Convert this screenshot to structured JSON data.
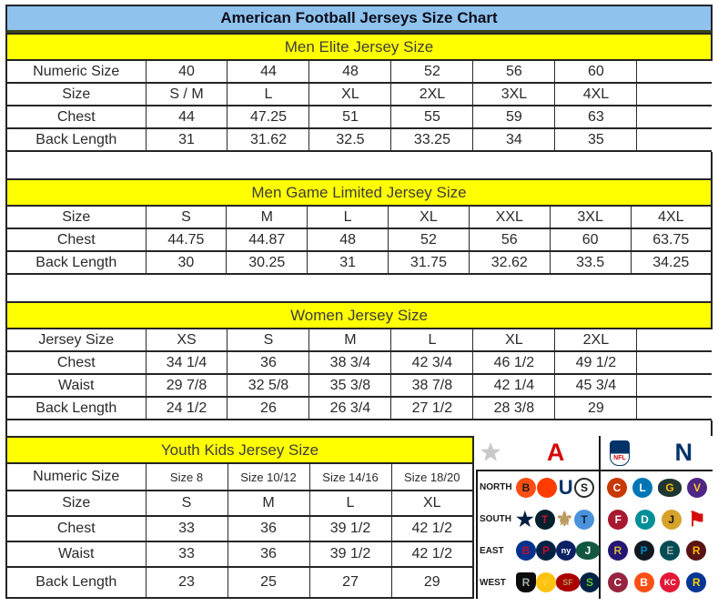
{
  "title": "American Football Jerseys Size Chart",
  "sections": [
    {
      "header": "Men Elite Jersey Size",
      "rows": [
        {
          "label": "Numeric Size",
          "values": [
            "40",
            "44",
            "48",
            "52",
            "56",
            "60",
            ""
          ]
        },
        {
          "label": "Size",
          "values": [
            "S / M",
            "L",
            "XL",
            "2XL",
            "3XL",
            "4XL",
            ""
          ]
        },
        {
          "label": "Chest",
          "values": [
            "44",
            "47.25",
            "51",
            "55",
            "59",
            "63",
            ""
          ]
        },
        {
          "label": "Back Length",
          "values": [
            "31",
            "31.62",
            "32.5",
            "33.25",
            "34",
            "35",
            ""
          ]
        }
      ]
    },
    {
      "header": "Men Game Limited Jersey Size",
      "rows": [
        {
          "label": "Size",
          "values": [
            "S",
            "M",
            "L",
            "XL",
            "XXL",
            "3XL",
            "4XL"
          ]
        },
        {
          "label": "Chest",
          "values": [
            "44.75",
            "44.87",
            "48",
            "52",
            "56",
            "60",
            "63.75"
          ]
        },
        {
          "label": "Back Length",
          "values": [
            "30",
            "30.25",
            "31",
            "31.75",
            "32.62",
            "33.5",
            "34.25"
          ]
        }
      ]
    },
    {
      "header": "Women Jersey Size",
      "rows": [
        {
          "label": "Jersey Size",
          "values": [
            "XS",
            "S",
            "M",
            "L",
            "XL",
            "2XL",
            ""
          ]
        },
        {
          "label": "Chest",
          "values": [
            "34 1/4",
            "36",
            "38 3/4",
            "42 3/4",
            "46 1/2",
            "49 1/2",
            ""
          ]
        },
        {
          "label": "Waist",
          "values": [
            "29 7/8",
            "32 5/8",
            "35 3/8",
            "38 7/8",
            "42 1/4",
            "45 3/4",
            ""
          ]
        },
        {
          "label": "Back Length",
          "values": [
            "24 1/2",
            "26",
            "26 3/4",
            "27 1/2",
            "28 3/8",
            "29",
            ""
          ]
        }
      ]
    },
    {
      "header": "Youth Kids Jersey Size",
      "rows": [
        {
          "label": "Numeric Size",
          "values": [
            "Size 8",
            "Size 10/12",
            "Size 14/16",
            "Size 18/20"
          ]
        },
        {
          "label": "Size",
          "values": [
            "S",
            "M",
            "L",
            "XL"
          ]
        },
        {
          "label": "Chest",
          "values": [
            "33",
            "36",
            "39 1/2",
            "42 1/2"
          ]
        },
        {
          "label": "Waist",
          "values": [
            "33",
            "36",
            "39 1/2",
            "42 1/2"
          ]
        },
        {
          "label": "Back Length",
          "values": [
            "23",
            "25",
            "27",
            "29"
          ]
        }
      ]
    }
  ],
  "logo_panel": {
    "header": {
      "starburst": {
        "name": "nfl-starburst",
        "glyph": "★",
        "color": "#c9c9c9"
      },
      "afc": {
        "name": "afc-logo",
        "glyph": "A",
        "color": "#d50a0a"
      },
      "shield": {
        "name": "nfl-shield",
        "glyph": "NFL",
        "bg": "#013369"
      },
      "nfc": {
        "name": "nfc-logo",
        "glyph": "N",
        "color": "#013369"
      }
    },
    "divisions": [
      {
        "label": "NORTH",
        "afc": [
          {
            "team": "bengals",
            "glyph": "B",
            "bg": "#fb4f14",
            "fg": "#1a1a1a"
          },
          {
            "team": "browns",
            "glyph": "",
            "bg": "#ff3c00"
          },
          {
            "team": "colts",
            "glyph": "U",
            "fg": "#013369",
            "shape": "plain"
          },
          {
            "team": "steelers",
            "glyph": "S",
            "bg": "#ffffff",
            "fg": "#101820",
            "border": "#2a2a2a"
          }
        ],
        "nfc": [
          {
            "team": "bears",
            "glyph": "C",
            "bg": "#c83803"
          },
          {
            "team": "lions",
            "glyph": "L",
            "bg": "#0076b6"
          },
          {
            "team": "packers",
            "glyph": "G",
            "bg": "#203731",
            "fg": "#ffb612",
            "shape": "oval"
          },
          {
            "team": "vikings",
            "glyph": "V",
            "bg": "#4f2683",
            "fg": "#ffc62f"
          }
        ]
      },
      {
        "label": "SOUTH",
        "afc": [
          {
            "team": "cowboys",
            "glyph": "★",
            "fg": "#041e42",
            "shape": "plain"
          },
          {
            "team": "texans",
            "glyph": "T",
            "bg": "#03202f",
            "fg": "#c41230"
          },
          {
            "team": "saints",
            "glyph": "⚜",
            "fg": "#b9975b",
            "shape": "plain"
          },
          {
            "team": "titans",
            "glyph": "T",
            "bg": "#4b92db",
            "fg": "#0c2340"
          }
        ],
        "nfc": [
          {
            "team": "falcons",
            "glyph": "F",
            "bg": "#a71930"
          },
          {
            "team": "dolphins",
            "glyph": "D",
            "bg": "#008e97"
          },
          {
            "team": "jaguars",
            "glyph": "J",
            "bg": "#d7a22a",
            "fg": "#101820"
          },
          {
            "team": "buccaneers",
            "glyph": "⚑",
            "fg": "#d50a0a",
            "shape": "plain"
          }
        ]
      },
      {
        "label": "EAST",
        "afc": [
          {
            "team": "bills",
            "glyph": "B",
            "bg": "#00338d",
            "fg": "#c60c30"
          },
          {
            "team": "patriots",
            "glyph": "P",
            "bg": "#002244",
            "fg": "#c60c30"
          },
          {
            "team": "giants",
            "glyph": "ny",
            "bg": "#0b2265"
          },
          {
            "team": "jets",
            "glyph": "J",
            "bg": "#125740",
            "shape": "oval"
          }
        ],
        "nfc": [
          {
            "team": "ravens",
            "glyph": "R",
            "bg": "#241773",
            "fg": "#d0b240"
          },
          {
            "team": "panthers",
            "glyph": "P",
            "bg": "#101820",
            "fg": "#0085ca"
          },
          {
            "team": "eagles",
            "glyph": "E",
            "bg": "#004c54",
            "fg": "#a5acaf"
          },
          {
            "team": "redskins",
            "glyph": "R",
            "bg": "#5a1414",
            "fg": "#ffb612"
          }
        ]
      },
      {
        "label": "WEST",
        "afc": [
          {
            "team": "raiders",
            "glyph": "R",
            "bg": "#0b0b0b",
            "fg": "#a5acaf",
            "shape": "shield"
          },
          {
            "team": "chargers",
            "glyph": "⚡",
            "bg": "#ffc20e",
            "fg": "#0a2342"
          },
          {
            "team": "fortyniners",
            "glyph": "SF",
            "bg": "#aa0000",
            "fg": "#b3995d",
            "shape": "oval"
          },
          {
            "team": "seahawks",
            "glyph": "S",
            "bg": "#002244",
            "fg": "#69be28"
          }
        ],
        "nfc": [
          {
            "team": "cardinals",
            "glyph": "C",
            "bg": "#97233f"
          },
          {
            "team": "broncos",
            "glyph": "B",
            "bg": "#fb4f14"
          },
          {
            "team": "chiefs",
            "glyph": "KC",
            "bg": "#e31837"
          },
          {
            "team": "rams",
            "glyph": "R",
            "bg": "#003594",
            "fg": "#ffd100"
          }
        ]
      }
    ]
  },
  "colors": {
    "title_bar_bg": "#8fc3ee",
    "section_header_bg": "#ffff00",
    "table_border": "#242424",
    "title_text": "#0d0d1a",
    "section_header_text": "#3d3d3d",
    "cell_text": "#2a2a2a"
  }
}
